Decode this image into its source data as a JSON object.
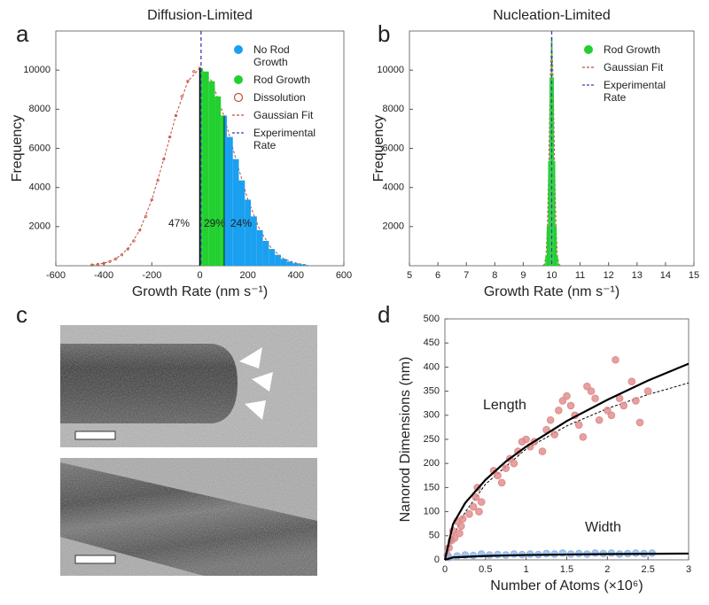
{
  "chart_data": [
    {
      "panel": "a",
      "type": "area",
      "title": "Diffusion-Limited",
      "x_label": "Growth Rate (nm s⁻¹)",
      "y_label": "Frequency",
      "xlim": [
        -600,
        600
      ],
      "xticks": [
        -600,
        -400,
        -200,
        0,
        200,
        400,
        600
      ],
      "ylim": [
        0,
        12000
      ],
      "yticks": [
        2000,
        4000,
        6000,
        8000,
        10000
      ],
      "legend": "upper right",
      "series": [
        {
          "name": "No Rod Growth",
          "color": "#1aa0f0",
          "style": "area",
          "x": [
            100,
            125,
            150,
            175,
            200,
            225,
            250,
            275,
            300,
            325,
            350,
            375,
            400,
            425,
            450
          ],
          "values": [
            7678,
            6583,
            5453,
            4362,
            3376,
            2522,
            1820,
            1269,
            855,
            557,
            350,
            213,
            125,
            71,
            39
          ]
        },
        {
          "name": "Rod Growth",
          "color": "#22d030",
          "style": "area",
          "x": [
            0,
            25,
            50,
            75,
            100
          ],
          "values": [
            10100,
            9928,
            9430,
            8655,
            7678
          ]
        },
        {
          "name": "Dissolution",
          "color": "#c0503c",
          "style": "hollow",
          "x": [
            -450,
            -425,
            -400,
            -375,
            -350,
            -325,
            -300,
            -275,
            -250,
            -225,
            -200,
            -175,
            -150,
            -125,
            -100,
            -75,
            -50,
            -25,
            0
          ],
          "values": [
            39,
            71,
            125,
            213,
            350,
            557,
            855,
            1269,
            1820,
            2522,
            3376,
            4362,
            5453,
            6583,
            7678,
            8655,
            9430,
            9928,
            10100
          ]
        },
        {
          "name": "Gaussian Fit",
          "color": "#c0503c",
          "style": "dashed",
          "x": [
            -450,
            -400,
            -350,
            -300,
            -250,
            -200,
            -150,
            -100,
            -50,
            0,
            50,
            100,
            150,
            200,
            250,
            300,
            350,
            400,
            450
          ],
          "values": [
            39,
            125,
            350,
            855,
            1820,
            3376,
            5453,
            7678,
            9430,
            10100,
            9430,
            7678,
            5453,
            3376,
            1820,
            855,
            350,
            125,
            39
          ]
        },
        {
          "name": "Experimental Rate",
          "color": "#3a3fb0",
          "style": "vline",
          "x": [
            5
          ]
        }
      ],
      "annotations": [
        "47%",
        "29%",
        "24%"
      ]
    },
    {
      "panel": "b",
      "type": "area",
      "title": "Nucleation-Limited",
      "x_label": "Growth Rate (nm s⁻¹)",
      "y_label": "Frequency",
      "xlim": [
        5,
        15
      ],
      "xticks": [
        5,
        6,
        7,
        8,
        9,
        10,
        11,
        12,
        13,
        14,
        15
      ],
      "ylim": [
        0,
        12000
      ],
      "yticks": [
        2000,
        4000,
        6000,
        8000,
        10000
      ],
      "legend": "upper right",
      "series": [
        {
          "name": "Rod Growth",
          "color": "#22d030",
          "style": "area",
          "x": [
            9.7,
            9.75,
            9.8,
            9.85,
            9.9,
            9.95,
            10,
            10.05,
            10.1,
            10.15,
            10.2,
            10.25,
            10.3
          ],
          "values": [
            10,
            88,
            514,
            2016,
            5360,
            9625,
            11700,
            9625,
            5360,
            2016,
            514,
            88,
            10
          ]
        },
        {
          "name": "Gaussian Fit",
          "color": "#c0503c",
          "style": "dashed",
          "x": [
            9.7,
            9.75,
            9.8,
            9.85,
            9.9,
            9.95,
            10,
            10.05,
            10.1,
            10.15,
            10.2,
            10.25,
            10.3
          ],
          "values": [
            10,
            88,
            514,
            2016,
            5360,
            9625,
            11700,
            9625,
            5360,
            2016,
            514,
            88,
            10
          ]
        },
        {
          "name": "Experimental Rate",
          "color": "#3a3fb0",
          "style": "vline",
          "x": [
            10
          ]
        }
      ]
    },
    {
      "panel": "d",
      "type": "scatter",
      "x_label": "Number of Atoms (×10⁶)",
      "y_label": "Nanorod Dimensions (nm)",
      "xlim": [
        0,
        3
      ],
      "xticks": [
        0,
        0.5,
        1,
        1.5,
        2,
        2.5,
        3
      ],
      "ylim": [
        0,
        500
      ],
      "yticks": [
        0,
        50,
        100,
        150,
        200,
        250,
        300,
        350,
        400,
        450,
        500
      ],
      "series": [
        {
          "name": "Length",
          "color": "#e08a8a",
          "style": "marker",
          "x": [
            0.03,
            0.05,
            0.08,
            0.1,
            0.12,
            0.15,
            0.18,
            0.2,
            0.22,
            0.3,
            0.35,
            0.38,
            0.4,
            0.42,
            0.45,
            0.6,
            0.65,
            0.7,
            0.75,
            0.8,
            0.85,
            0.9,
            0.95,
            1.0,
            1.05,
            1.1,
            1.2,
            1.25,
            1.3,
            1.35,
            1.4,
            1.45,
            1.5,
            1.55,
            1.6,
            1.65,
            1.7,
            1.75,
            1.8,
            1.85,
            1.9,
            2.0,
            2.05,
            2.1,
            2.15,
            2.2,
            2.3,
            2.35,
            2.4,
            2.5
          ],
          "values": [
            10,
            25,
            40,
            60,
            45,
            80,
            55,
            70,
            85,
            95,
            110,
            130,
            150,
            100,
            120,
            185,
            175,
            160,
            190,
            210,
            200,
            225,
            245,
            250,
            235,
            245,
            225,
            270,
            290,
            260,
            310,
            330,
            340,
            320,
            300,
            280,
            255,
            360,
            350,
            335,
            290,
            310,
            300,
            415,
            335,
            320,
            370,
            330,
            285,
            350
          ]
        },
        {
          "name": "Width",
          "color": "#8fb6e6",
          "style": "marker",
          "x": [
            0.05,
            0.15,
            0.25,
            0.35,
            0.45,
            0.55,
            0.65,
            0.75,
            0.85,
            0.95,
            1.05,
            1.15,
            1.25,
            1.35,
            1.45,
            1.55,
            1.65,
            1.75,
            1.85,
            1.95,
            2.05,
            2.15,
            2.25,
            2.35,
            2.45,
            2.55
          ],
          "values": [
            5,
            8,
            10,
            9,
            12,
            10,
            11,
            10,
            12,
            11,
            12,
            11,
            13,
            12,
            14,
            12,
            13,
            12,
            14,
            13,
            14,
            12,
            13,
            14,
            13,
            14
          ]
        },
        {
          "color": "#000000",
          "style": "solid",
          "x": [
            0,
            0.1,
            0.25,
            0.5,
            0.75,
            1,
            1.5,
            2,
            2.5,
            3
          ],
          "values": [
            0,
            74,
            118,
            166,
            204,
            235,
            288,
            332,
            372,
            407
          ]
        },
        {
          "color": "#000000",
          "style": "dashed",
          "x": [
            0,
            0.1,
            0.25,
            0.5,
            1,
            1.5,
            2,
            2.5,
            3
          ],
          "values": [
            0,
            48,
            99,
            157,
            230,
            278,
            314,
            343,
            367
          ]
        },
        {
          "color": "#000000",
          "style": "solid",
          "x": [
            0,
            0.1,
            0.5,
            1,
            2,
            3
          ],
          "values": [
            0,
            5,
            8,
            10,
            12,
            13
          ]
        }
      ]
    }
  ],
  "figure": {
    "label": "c"
  }
}
